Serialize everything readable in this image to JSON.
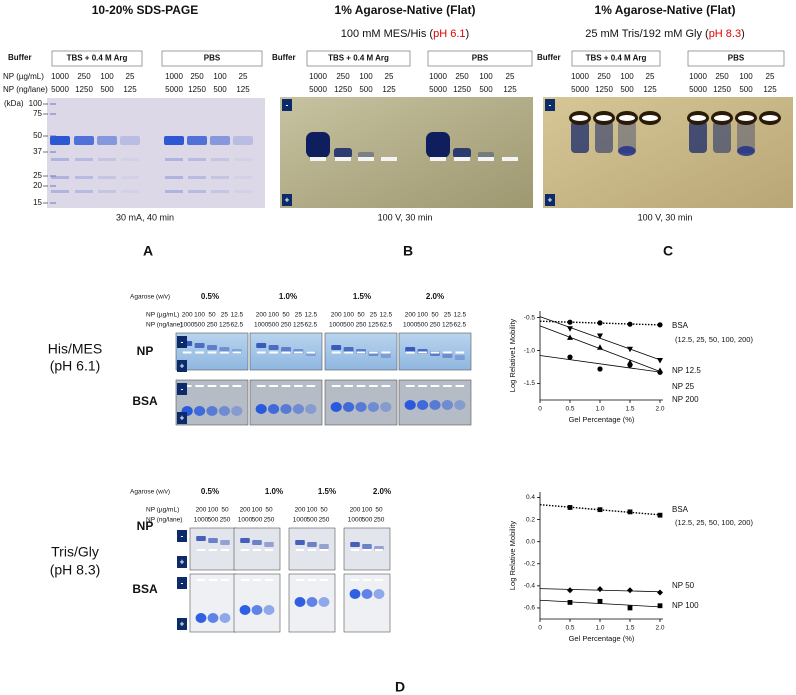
{
  "figure": {
    "panels": [
      {
        "label": "A",
        "title": "10-20% SDS-PAGE",
        "buffer_label": "Buffer",
        "buffers": [
          "TBS + 0.4 M Arg",
          "PBS"
        ],
        "conc_label": "NP (µg/mL)",
        "lane_label": "NP (ng/lane)",
        "conc": [
          1000,
          250,
          100,
          25,
          1000,
          250,
          100,
          25
        ],
        "lane": [
          5000,
          1250,
          500,
          125,
          5000,
          1250,
          500,
          125
        ],
        "kda_label": "(kDa)",
        "kda": [
          100,
          75,
          50,
          37,
          25,
          20,
          15
        ],
        "condition": "30 mA, 40 min"
      },
      {
        "label": "B",
        "title": "1% Agarose-Native (Flat)",
        "subtitle": [
          "100 mM MES/His (",
          "pH 6.1",
          ")"
        ],
        "buffer_label": "Buffer",
        "buffers": [
          "TBS + 0.4 M Arg",
          "PBS"
        ],
        "conc": [
          1000,
          250,
          100,
          25,
          1000,
          250,
          100,
          25
        ],
        "lane": [
          5000,
          1250,
          500,
          125,
          5000,
          1250,
          500,
          125
        ],
        "electrodes": [
          "-",
          "+"
        ],
        "condition": "100 V, 30 min"
      },
      {
        "label": "C",
        "title": "1% Agarose-Native (Flat)",
        "subtitle": [
          "25 mM Tris/192 mM Gly (",
          "pH 8.3",
          ")"
        ],
        "buffer_label": "Buffer",
        "buffers": [
          "TBS + 0.4 M Arg",
          "PBS"
        ],
        "conc": [
          1000,
          250,
          100,
          25,
          1000,
          250,
          100,
          25
        ],
        "lane": [
          5000,
          1250,
          500,
          125,
          5000,
          1250,
          500,
          125
        ],
        "electrodes": [
          "-",
          "+"
        ],
        "condition": "100 V, 30 min"
      }
    ],
    "panel_d": {
      "label": "D",
      "agarose_label": "Agarose (w/v)",
      "conc_label": "NP (µg/mL)",
      "lane_label": "NP (ng/lane)",
      "electrodes": [
        "-",
        "+"
      ],
      "sections": [
        {
          "name": [
            "His/MES",
            "(pH 6.1)"
          ],
          "percentages": [
            "0.5%",
            "1.0%",
            "1.5%",
            "2.0%"
          ],
          "conc": [
            200,
            100,
            50,
            25,
            12.5
          ],
          "lane": [
            1000,
            500,
            250,
            125,
            62.5
          ],
          "rows": [
            "NP",
            "BSA"
          ]
        },
        {
          "name": [
            "Tris/Gly",
            "(pH 8.3)"
          ],
          "percentages": [
            "0.5%",
            "1.0%",
            "1.5%",
            "2.0%"
          ],
          "conc": [
            200,
            100,
            50
          ],
          "lane": [
            1000,
            500,
            250
          ],
          "rows": [
            "NP",
            "BSA"
          ]
        }
      ]
    }
  },
  "chart_data": [
    {
      "type": "scatter",
      "ylabel": "Log Relative1 Mobility",
      "xlabel": "Gel Percentage (%)",
      "color": "#000000",
      "xlim": [
        0,
        2.05
      ],
      "ylim": [
        -1.75,
        -0.4
      ],
      "xticks": [
        0,
        0.5,
        {
          "value": 1,
          "label": "1.0"
        },
        1.5,
        {
          "value": 2,
          "label": "2.0"
        }
      ],
      "yticks": [
        -0.5,
        {
          "value": -1,
          "label": "-1.0"
        },
        -1.5
      ],
      "annotation": "(12.5, 25, 50, 100, 200)",
      "fit": "linear",
      "series": [
        {
          "name": "BSA",
          "marker": "circle",
          "line_style": "dotted",
          "x": [
            0.5,
            1,
            1.5,
            2
          ],
          "values": [
            -0.57,
            -0.58,
            -0.6,
            -0.61
          ]
        },
        {
          "name": "NP 12.5",
          "marker": "triangle-down",
          "line_style": "solid",
          "x": [
            0.5,
            1,
            1.5,
            2
          ],
          "values": [
            -0.67,
            -0.78,
            -0.98,
            -1.15
          ]
        },
        {
          "name": "NP 25",
          "marker": "triangle-up",
          "line_style": "solid",
          "x": [
            0.5,
            1,
            1.5,
            2
          ],
          "values": [
            -0.8,
            -0.95,
            -1.18,
            -1.3
          ]
        },
        {
          "name": "NP 200",
          "marker": "circle",
          "line_style": "solid",
          "x": [
            0.5,
            1,
            1.5,
            2
          ],
          "values": [
            -1.1,
            -1.28,
            -1.22,
            -1.33
          ]
        }
      ]
    },
    {
      "type": "scatter",
      "ylabel": "Log Relative Mobility",
      "xlabel": "Gel Percentage (%)",
      "color": "#000000",
      "xlim": [
        0,
        2.05
      ],
      "ylim": [
        -0.7,
        0.45
      ],
      "xticks": [
        0,
        0.5,
        {
          "value": 1,
          "label": "1.0"
        },
        1.5,
        {
          "value": 2,
          "label": "2.0"
        }
      ],
      "yticks": [
        0.4,
        0.2,
        {
          "value": 0,
          "label": "0.0"
        },
        -0.2,
        -0.4,
        -0.6
      ],
      "annotation": "(12.5, 25, 50, 100, 200)",
      "fit": "linear",
      "series": [
        {
          "name": "BSA",
          "marker": "square",
          "line_style": "dotted",
          "x": [
            0.5,
            1,
            1.5,
            2
          ],
          "values": [
            0.31,
            0.29,
            0.27,
            0.24
          ]
        },
        {
          "name": "NP 50",
          "marker": "diamond",
          "line_style": "solid",
          "x": [
            0.5,
            1,
            1.5,
            2
          ],
          "values": [
            -0.44,
            -0.43,
            -0.44,
            -0.46
          ]
        },
        {
          "name": "NP 100",
          "marker": "square",
          "line_style": "solid",
          "x": [
            0.5,
            1,
            1.5,
            2
          ],
          "values": [
            -0.55,
            -0.54,
            -0.6,
            -0.58
          ]
        }
      ]
    }
  ]
}
